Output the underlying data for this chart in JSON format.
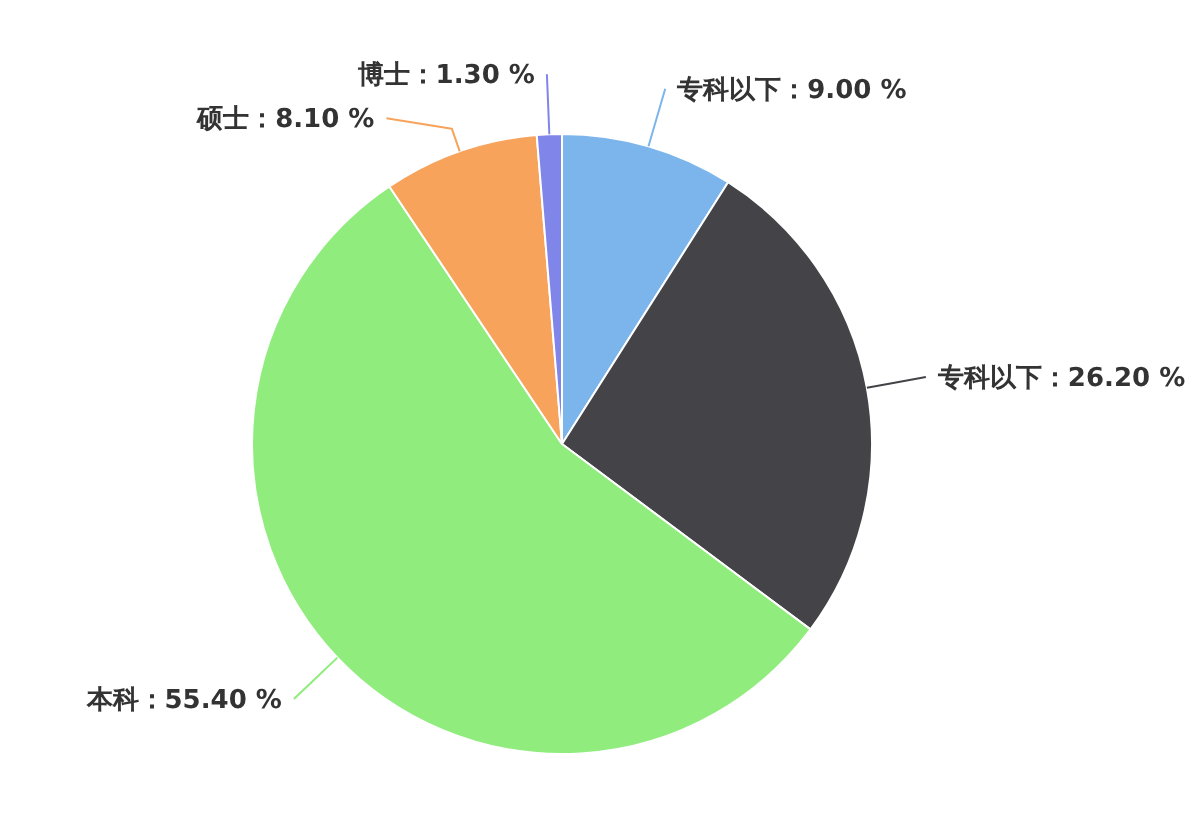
{
  "chart_data": {
    "type": "pie",
    "categories": [
      "专科以下",
      "专科以下",
      "本科",
      "硕士",
      "博士"
    ],
    "values": [
      9.0,
      26.2,
      55.4,
      8.1,
      1.3
    ],
    "colors": [
      "#7cb5ec",
      "#434348",
      "#90ed7d",
      "#f7a35c",
      "#8085e9"
    ],
    "value_labels": [
      "9.00 %",
      "26.20 %",
      "55.40 %",
      "8.10 %",
      "1.30 %"
    ]
  }
}
